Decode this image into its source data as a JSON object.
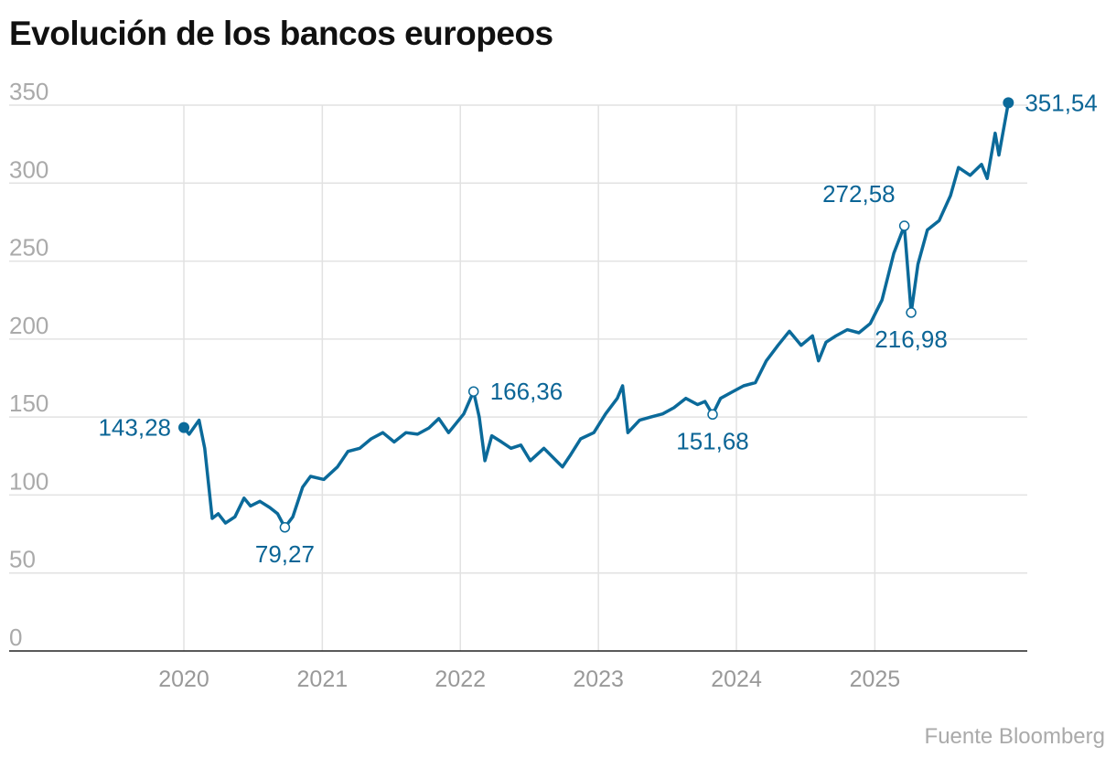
{
  "chart_data": {
    "type": "line",
    "title": "Evolución de los bancos europeos",
    "source": "Fuente Bloomberg",
    "color": "#0b6a9a",
    "ylim": [
      0,
      350
    ],
    "yticks": [
      0,
      50,
      100,
      150,
      200,
      250,
      300,
      350
    ],
    "ytick_labels": [
      "0",
      "50",
      "100",
      "150",
      "200",
      "250",
      "300",
      "350"
    ],
    "xlim": [
      "2018-09-26",
      "2026-02-08"
    ],
    "xticks": [
      "2020-01-01",
      "2021-01-01",
      "2022-01-01",
      "2023-01-01",
      "2024-01-01",
      "2025-01-01"
    ],
    "xtick_labels": [
      "2020",
      "2021",
      "2022",
      "2023",
      "2024",
      "2025"
    ],
    "grid": true,
    "series": [
      {
        "points": [
          [
            "2020-01-01",
            143.28
          ],
          [
            "2020-01-15",
            139
          ],
          [
            "2020-02-10",
            148
          ],
          [
            "2020-02-25",
            130
          ],
          [
            "2020-03-16",
            85
          ],
          [
            "2020-04-01",
            88
          ],
          [
            "2020-04-20",
            82
          ],
          [
            "2020-05-15",
            86
          ],
          [
            "2020-06-08",
            98
          ],
          [
            "2020-06-25",
            93
          ],
          [
            "2020-07-20",
            96
          ],
          [
            "2020-08-15",
            92
          ],
          [
            "2020-09-05",
            88
          ],
          [
            "2020-09-24",
            79.27
          ],
          [
            "2020-10-15",
            86
          ],
          [
            "2020-11-10",
            105
          ],
          [
            "2020-12-01",
            112
          ],
          [
            "2021-01-05",
            110
          ],
          [
            "2021-02-10",
            118
          ],
          [
            "2021-03-10",
            128
          ],
          [
            "2021-04-10",
            130
          ],
          [
            "2021-05-10",
            136
          ],
          [
            "2021-06-10",
            140
          ],
          [
            "2021-07-10",
            134
          ],
          [
            "2021-08-10",
            140
          ],
          [
            "2021-09-10",
            139
          ],
          [
            "2021-10-10",
            143
          ],
          [
            "2021-11-05",
            149
          ],
          [
            "2021-12-01",
            140
          ],
          [
            "2022-01-10",
            152
          ],
          [
            "2022-02-05",
            166.36
          ],
          [
            "2022-02-20",
            150
          ],
          [
            "2022-03-07",
            122
          ],
          [
            "2022-03-25",
            138
          ],
          [
            "2022-04-20",
            134
          ],
          [
            "2022-05-15",
            130
          ],
          [
            "2022-06-10",
            132
          ],
          [
            "2022-07-05",
            122
          ],
          [
            "2022-08-10",
            130
          ],
          [
            "2022-09-28",
            118
          ],
          [
            "2022-10-20",
            126
          ],
          [
            "2022-11-15",
            136
          ],
          [
            "2022-12-20",
            140
          ],
          [
            "2023-01-20",
            152
          ],
          [
            "2023-02-20",
            162
          ],
          [
            "2023-03-06",
            170
          ],
          [
            "2023-03-20",
            140
          ],
          [
            "2023-04-20",
            148
          ],
          [
            "2023-05-20",
            150
          ],
          [
            "2023-06-20",
            152
          ],
          [
            "2023-07-20",
            156
          ],
          [
            "2023-08-20",
            162
          ],
          [
            "2023-09-20",
            158
          ],
          [
            "2023-10-10",
            160
          ],
          [
            "2023-10-30",
            151.68
          ],
          [
            "2023-11-20",
            162
          ],
          [
            "2023-12-20",
            166
          ],
          [
            "2024-01-20",
            170
          ],
          [
            "2024-02-20",
            172
          ],
          [
            "2024-03-20",
            186
          ],
          [
            "2024-04-20",
            196
          ],
          [
            "2024-05-20",
            205
          ],
          [
            "2024-06-20",
            196
          ],
          [
            "2024-07-20",
            202
          ],
          [
            "2024-08-05",
            186
          ],
          [
            "2024-08-25",
            198
          ],
          [
            "2024-09-20",
            202
          ],
          [
            "2024-10-20",
            206
          ],
          [
            "2024-11-20",
            204
          ],
          [
            "2024-12-20",
            210
          ],
          [
            "2025-01-20",
            225
          ],
          [
            "2025-02-20",
            255
          ],
          [
            "2025-03-20",
            272.58
          ],
          [
            "2025-04-07",
            216.98
          ],
          [
            "2025-04-25",
            248
          ],
          [
            "2025-05-20",
            270
          ],
          [
            "2025-06-20",
            276
          ],
          [
            "2025-07-20",
            292
          ],
          [
            "2025-08-10",
            310
          ],
          [
            "2025-09-10",
            305
          ],
          [
            "2025-10-10",
            312
          ],
          [
            "2025-10-25",
            303
          ],
          [
            "2025-11-15",
            332
          ],
          [
            "2025-11-25",
            318
          ],
          [
            "2025-12-20",
            351.54
          ]
        ]
      }
    ],
    "annotations": [
      {
        "date": "2020-01-01",
        "value": 143.28,
        "label": "143,28",
        "pos": "left",
        "marker": "filled"
      },
      {
        "date": "2020-09-24",
        "value": 79.27,
        "label": "79,27",
        "pos": "below",
        "marker": "open"
      },
      {
        "date": "2022-02-05",
        "value": 166.36,
        "label": "166,36",
        "pos": "right",
        "marker": "open"
      },
      {
        "date": "2023-10-30",
        "value": 151.68,
        "label": "151,68",
        "pos": "below",
        "marker": "open"
      },
      {
        "date": "2025-03-20",
        "value": 272.58,
        "label": "272,58",
        "pos": "above-left",
        "marker": "open"
      },
      {
        "date": "2025-04-07",
        "value": 216.98,
        "label": "216,98",
        "pos": "below",
        "marker": "open"
      },
      {
        "date": "2025-12-20",
        "value": 351.54,
        "label": "351,54",
        "pos": "right",
        "marker": "filled"
      }
    ]
  }
}
